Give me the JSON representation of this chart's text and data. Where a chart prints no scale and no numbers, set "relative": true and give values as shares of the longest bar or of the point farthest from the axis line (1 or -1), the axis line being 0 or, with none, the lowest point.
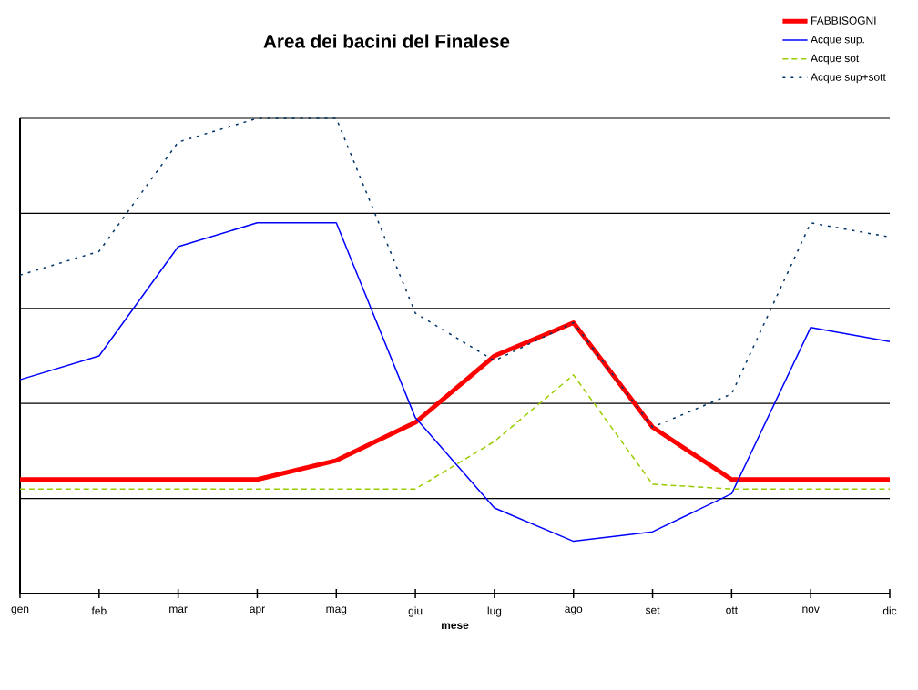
{
  "chart_data": {
    "type": "line",
    "title": "Area dei bacini del Finalese",
    "xlabel": "mese",
    "categories": [
      "gen",
      "feb",
      "mar",
      "apr",
      "mag",
      "giu",
      "lug",
      "ago",
      "set",
      "ott",
      "nov",
      "dic"
    ],
    "relative": true,
    "grid": "y",
    "legend": "top right",
    "marker": "none",
    "series": [
      {
        "name": "FABBISOGNI",
        "color": "#ff0000",
        "line_style": "solid",
        "values": [
          0.24,
          0.24,
          0.24,
          0.24,
          0.28,
          0.36,
          0.5,
          0.57,
          0.35,
          0.24,
          0.24,
          0.24
        ]
      },
      {
        "name": "Acque sup.",
        "color": "#0000ff",
        "line_style": "solid",
        "values": [
          0.45,
          0.5,
          0.73,
          0.78,
          0.78,
          0.37,
          0.18,
          0.11,
          0.13,
          0.21,
          0.56,
          0.53
        ]
      },
      {
        "name": "Acque sot",
        "color": "#99cc00",
        "line_style": "dashed",
        "values": [
          0.22,
          0.22,
          0.22,
          0.22,
          0.22,
          0.22,
          0.32,
          0.46,
          0.23,
          0.22,
          0.22,
          0.22
        ]
      },
      {
        "name": "Acque sup+sott",
        "color": "#003366",
        "line_style": "dotted",
        "values": [
          0.67,
          0.72,
          0.95,
          1,
          1,
          0.59,
          0.49,
          0.57,
          0.35,
          0.42,
          0.78,
          0.75
        ]
      }
    ]
  }
}
